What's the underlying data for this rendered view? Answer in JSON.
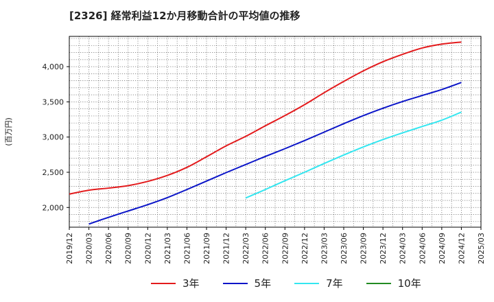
{
  "chart_data": {
    "type": "line",
    "title": "[2326]  経常利益12か月移動合計の平均値の推移",
    "ylabel": "(百万円)",
    "xlabel": "",
    "ylim": [
      1720,
      4430
    ],
    "grid": true,
    "x_ticks": [
      "2019/12",
      "2020/03",
      "2020/06",
      "2020/09",
      "2020/12",
      "2021/03",
      "2021/06",
      "2021/09",
      "2021/12",
      "2022/03",
      "2022/06",
      "2022/09",
      "2022/12",
      "2023/03",
      "2023/06",
      "2023/09",
      "2023/12",
      "2024/03",
      "2024/06",
      "2024/09",
      "2024/12",
      "2025/03"
    ],
    "y_ticks": [
      "2,000",
      "2,500",
      "3,000",
      "3,500",
      "4,000"
    ],
    "y_tick_values": [
      2000,
      2500,
      3000,
      3500,
      4000
    ],
    "legend_position": "bottom",
    "series": [
      {
        "name": "3年",
        "color": "#e31a1c",
        "values": [
          [
            0,
            2190
          ],
          [
            1,
            2245
          ],
          [
            2,
            2275
          ],
          [
            3,
            2310
          ],
          [
            4,
            2370
          ],
          [
            5,
            2455
          ],
          [
            6,
            2570
          ],
          [
            7,
            2720
          ],
          [
            8,
            2875
          ],
          [
            9,
            3010
          ],
          [
            10,
            3160
          ],
          [
            11,
            3305
          ],
          [
            12,
            3460
          ],
          [
            13,
            3630
          ],
          [
            14,
            3790
          ],
          [
            15,
            3940
          ],
          [
            16,
            4070
          ],
          [
            17,
            4175
          ],
          [
            18,
            4265
          ],
          [
            19,
            4320
          ],
          [
            20,
            4350
          ]
        ]
      },
      {
        "name": "5年",
        "color": "#0a14c8",
        "values": [
          [
            1,
            1765
          ],
          [
            2,
            1860
          ],
          [
            3,
            1950
          ],
          [
            4,
            2040
          ],
          [
            5,
            2140
          ],
          [
            6,
            2255
          ],
          [
            7,
            2375
          ],
          [
            8,
            2495
          ],
          [
            9,
            2610
          ],
          [
            10,
            2725
          ],
          [
            11,
            2835
          ],
          [
            12,
            2950
          ],
          [
            13,
            3070
          ],
          [
            14,
            3190
          ],
          [
            15,
            3305
          ],
          [
            16,
            3410
          ],
          [
            17,
            3505
          ],
          [
            18,
            3590
          ],
          [
            19,
            3675
          ],
          [
            20,
            3775
          ]
        ]
      },
      {
        "name": "7年",
        "color": "#33e6f0",
        "values": [
          [
            9,
            2135
          ],
          [
            10,
            2255
          ],
          [
            11,
            2380
          ],
          [
            12,
            2500
          ],
          [
            13,
            2625
          ],
          [
            14,
            2745
          ],
          [
            15,
            2860
          ],
          [
            16,
            2965
          ],
          [
            17,
            3060
          ],
          [
            18,
            3150
          ],
          [
            19,
            3240
          ],
          [
            20,
            3355
          ]
        ]
      },
      {
        "name": "10年",
        "color": "#228b22",
        "values": []
      }
    ]
  }
}
